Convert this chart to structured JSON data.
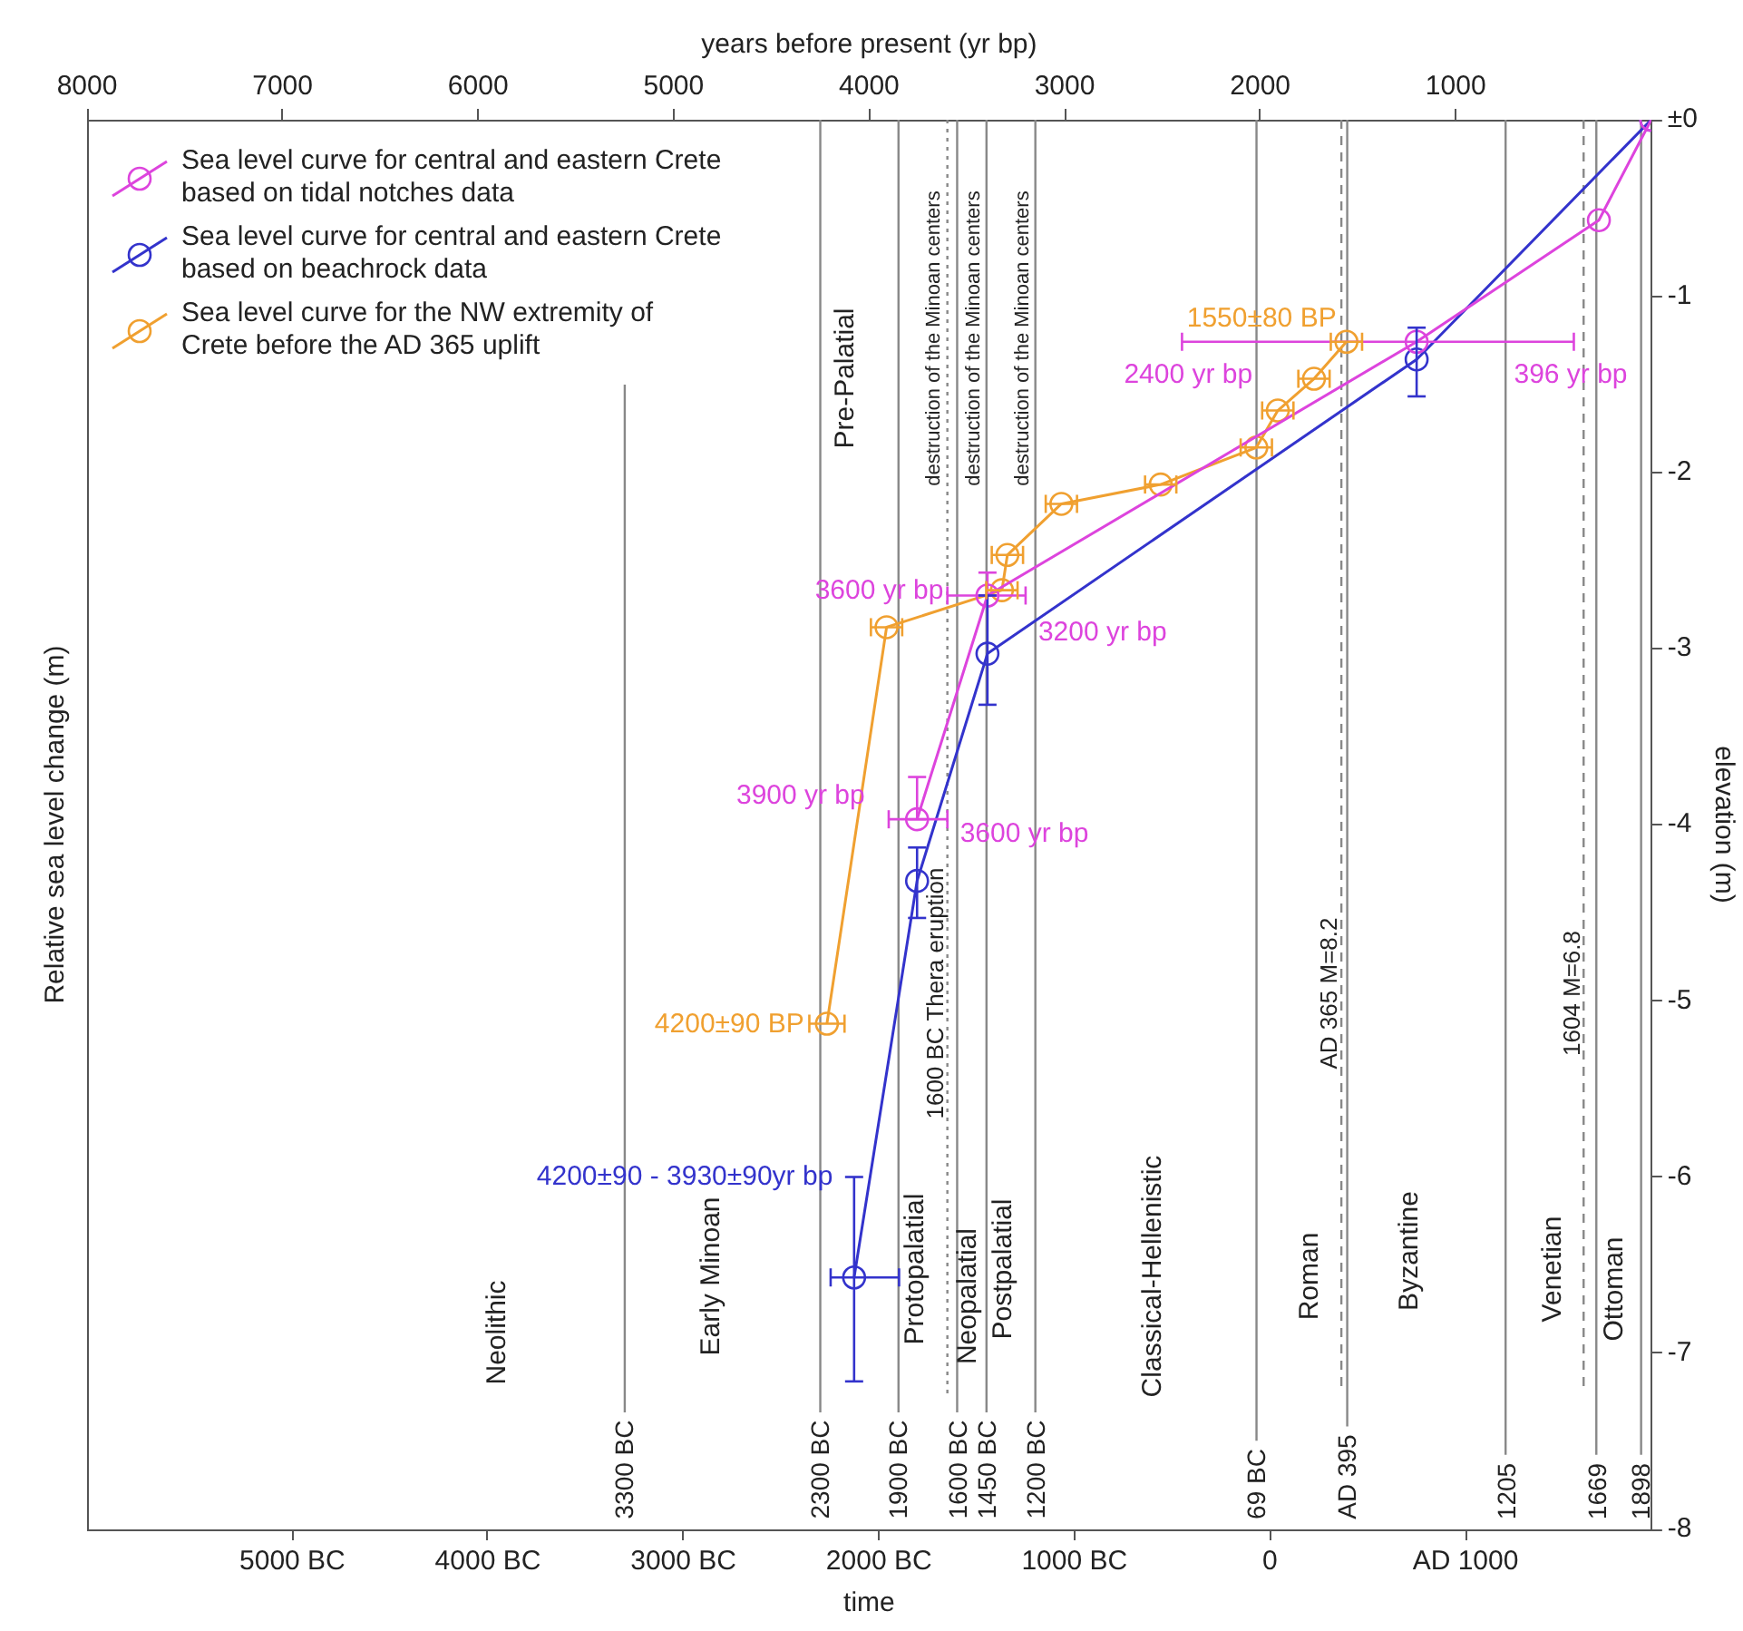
{
  "chart_data": {
    "type": "line",
    "xlabel": "time",
    "x2label": "years before present (yr bp)",
    "ylabel": "Relative sea level change (m)",
    "y2label": "elevation (m)",
    "xlim": [
      -6050,
      1950
    ],
    "xticks": [
      {
        "value": -5000,
        "label": "5000 BC"
      },
      {
        "value": -4000,
        "label": "4000 BC"
      },
      {
        "value": -3000,
        "label": "3000 BC"
      },
      {
        "value": -2000,
        "label": "2000 BC"
      },
      {
        "value": -1000,
        "label": "1000 BC"
      },
      0,
      {
        "value": 1000,
        "label": "AD 1000"
      }
    ],
    "x2lim": [
      8000,
      0
    ],
    "x2ticks": [
      8000,
      7000,
      6000,
      5000,
      4000,
      3000,
      2000,
      1000
    ],
    "ylim": [
      -8,
      0
    ],
    "yticks": [
      {
        "value": 0,
        "label": "±0"
      },
      -1,
      -2,
      -3,
      -4,
      -5,
      -6,
      -7,
      -8
    ],
    "marker": "circle",
    "legend": "top left",
    "series": [
      {
        "name": "Sea level curve for central and eastern Crete based on tidal notches data",
        "color": "#dd44dd",
        "x": [
          -1805,
          -1445,
          750,
          1682,
          1950
        ],
        "values": [
          -3.97,
          -2.7,
          -1.26,
          -0.57,
          0
        ],
        "errors": [
          [
            -3.97,
            -3.73
          ],
          [
            -2.7,
            -2.57
          ],
          null,
          null,
          null
        ],
        "xerrors": [
          [
            -1950,
            -1650
          ],
          [
            -1650,
            -1250
          ],
          [
            -450,
            1554
          ],
          null,
          null
        ]
      },
      {
        "name": "Sea level curve for central and eastern Crete based on beachrock data",
        "color": "#3333cc",
        "x": [
          -2127,
          -1805,
          -1445,
          750,
          1950
        ],
        "values": [
          -6.57,
          -4.32,
          -3.03,
          -1.36,
          0
        ],
        "errors": [
          [
            -7.16,
            -6.0
          ],
          [
            -4.53,
            -4.13
          ],
          [
            -3.32,
            -2.7
          ],
          [
            -1.57,
            -1.18
          ],
          null
        ],
        "xerrors": [
          [
            -2247,
            -1897
          ],
          null,
          null,
          null,
          null
        ]
      },
      {
        "name": "Sea level curve for the NW extremity of Crete before the AD 365 uplift",
        "color": "#f0a030",
        "x": [
          -2266,
          -1961,
          -1371,
          -1343,
          -1067,
          -559,
          -70,
          40,
          225,
          391
        ],
        "values": [
          -5.13,
          -2.88,
          -2.67,
          -2.47,
          -2.18,
          -2.07,
          -1.86,
          -1.65,
          -1.47,
          -1.26
        ],
        "xerrors": [
          90,
          80,
          80,
          80,
          80,
          80,
          80,
          80,
          80,
          80
        ]
      }
    ],
    "ref_lines": [
      {
        "axis": "x",
        "value": -3300,
        "label": "3300 BC",
        "color": "#888888"
      },
      {
        "axis": "x",
        "value": -2300,
        "label": "2300 BC",
        "color": "#888888"
      },
      {
        "axis": "x",
        "value": -1900,
        "label": "1900 BC",
        "color": "#888888"
      },
      {
        "axis": "x",
        "value": -1600,
        "label": "1600 BC",
        "color": "#888888"
      },
      {
        "axis": "x",
        "value": -1450,
        "label": "1450 BC",
        "color": "#888888"
      },
      {
        "axis": "x",
        "value": -1200,
        "label": "1200 BC",
        "color": "#888888"
      },
      {
        "axis": "x",
        "value": -69,
        "label": "69 BC",
        "color": "#888888"
      },
      {
        "axis": "x",
        "value": 395,
        "label": "AD 395",
        "color": "#888888"
      },
      {
        "axis": "x",
        "value": 1205,
        "label": "1205",
        "color": "#888888"
      },
      {
        "axis": "x",
        "value": 1669,
        "label": "1669",
        "color": "#888888"
      },
      {
        "axis": "x",
        "value": 1898,
        "label": "1898",
        "color": "#888888"
      },
      {
        "axis": "x",
        "value": -1650,
        "label": "1600 BC Thera eruption",
        "color": "#888888",
        "line_style": "dotted"
      },
      {
        "axis": "x",
        "value": 365,
        "label": "AD 365 M=8.2",
        "color": "#888888",
        "line_style": "dashed"
      },
      {
        "axis": "x",
        "value": 1604,
        "label": "1604 M=6.8",
        "color": "#888888",
        "line_style": "dashed"
      }
    ],
    "annotations": [
      {
        "text": "1550±80 BP",
        "x": 391,
        "y": -1.26
      },
      {
        "text": "2400 yr bp",
        "x": -450,
        "y": -1.26
      },
      {
        "text": "396 yr bp",
        "x": 1554,
        "y": -1.26
      },
      {
        "text": "3600 yr bp",
        "x": -1650,
        "y": -2.7
      },
      {
        "text": "3200 yr bp",
        "x": -1250,
        "y": -2.7
      },
      {
        "text": "3900 yr bp",
        "x": -1950,
        "y": -3.97
      },
      {
        "text": "3600 yr bp",
        "x": -1650,
        "y": -3.97
      },
      {
        "text": "4200±90 BP",
        "x": -2266,
        "y": -5.13
      },
      {
        "text": "4200±90 - 3930±90yr bp",
        "x": -2127,
        "y": -6.0
      },
      "Neolithic",
      "Early Minoan",
      "Pre-Palatial",
      "Protopalatial",
      "Neopalatial",
      "Postpalatial",
      "Classical-Hellenistic",
      "Roman",
      "Byzantine",
      "Venetian",
      "Ottoman",
      "destruction of the Minoan centers",
      "destruction of the Minoan centers",
      "destruction of the Minoan centers"
    ]
  }
}
